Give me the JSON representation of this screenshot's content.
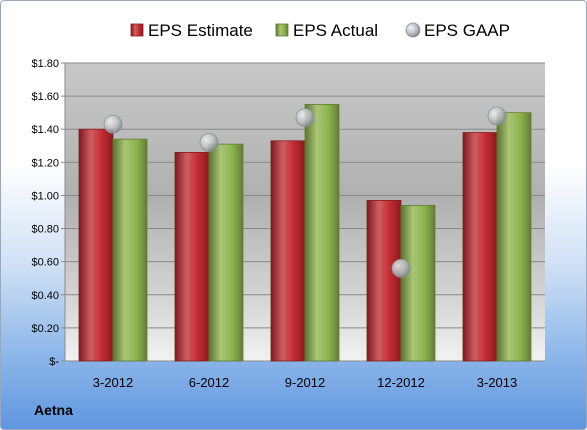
{
  "chart_data": {
    "type": "bar",
    "categories": [
      "3-2012",
      "6-2012",
      "9-2012",
      "12-2012",
      "3-2013"
    ],
    "series": [
      {
        "name": "EPS Estimate",
        "kind": "bar",
        "color": "#c0282d",
        "values": [
          1.4,
          1.26,
          1.33,
          0.97,
          1.38
        ]
      },
      {
        "name": "EPS Actual",
        "kind": "bar",
        "color": "#8cb24a",
        "values": [
          1.34,
          1.31,
          1.55,
          0.94,
          1.5
        ]
      },
      {
        "name": "EPS GAAP",
        "kind": "marker",
        "color": "#b8bcc2",
        "values": [
          1.43,
          1.32,
          1.47,
          0.56,
          1.48
        ]
      }
    ],
    "ylim": [
      0,
      1.8
    ],
    "yticks": [
      0,
      0.2,
      0.4,
      0.6,
      0.8,
      1.0,
      1.2,
      1.4,
      1.6,
      1.8
    ],
    "ytick_labels": [
      "$-",
      "$0.20",
      "$0.40",
      "$0.60",
      "$0.80",
      "$1.00",
      "$1.20",
      "$1.40",
      "$1.60",
      "$1.80"
    ],
    "grid": true,
    "legend_position": "top",
    "xlabel": "",
    "ylabel": "",
    "title": ""
  },
  "footer": {
    "company": "Aetna"
  }
}
